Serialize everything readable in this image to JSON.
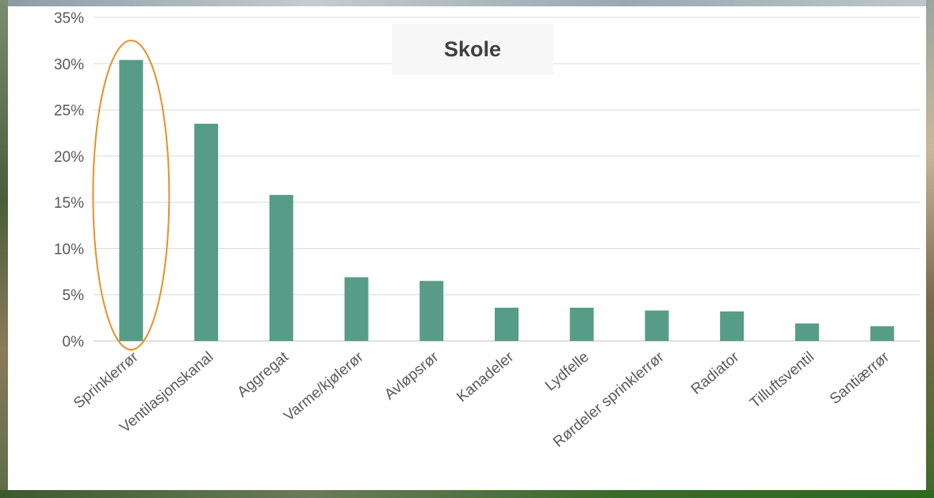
{
  "chart_data": {
    "type": "bar",
    "title": "Skole",
    "categories": [
      "Sprinklerrør",
      "Ventilasjonskanal",
      "Aggregat",
      "Varme/kjølerør",
      "Avløpsrør",
      "Kanadeler",
      "Lydfelle",
      "Rørdeler sprinklerrør",
      "Radiator",
      "Tilluftsventil",
      "Santiærrør"
    ],
    "values": [
      30.4,
      23.5,
      15.8,
      6.9,
      6.5,
      3.6,
      3.6,
      3.3,
      3.2,
      1.9,
      1.6
    ],
    "ylim": [
      0,
      35
    ],
    "yticks": [
      "0%",
      "5%",
      "10%",
      "15%",
      "20%",
      "25%",
      "30%",
      "35%"
    ],
    "grid": true,
    "xlabel": "",
    "ylabel": "",
    "bar_color": "#579c86",
    "highlight": {
      "category": "Sprinklerrør",
      "shape": "ellipse",
      "color": "#e8902a"
    }
  }
}
